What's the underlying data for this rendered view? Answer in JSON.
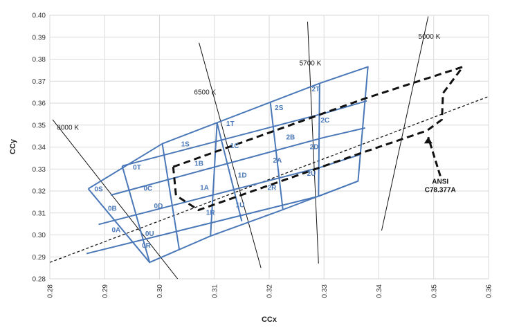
{
  "chart_data": {
    "type": "scatter",
    "xlabel": "CCx",
    "ylabel": "CCy",
    "xlim": [
      0.28,
      0.36
    ],
    "ylim": [
      0.28,
      0.4
    ],
    "xticks": [
      "0.28",
      "0.29",
      "0.30",
      "0.31",
      "0.32",
      "0.33",
      "0.34",
      "0.35",
      "0.36"
    ],
    "yticks": [
      "0.28",
      "0.29",
      "0.30",
      "0.31",
      "0.32",
      "0.33",
      "0.34",
      "0.35",
      "0.36",
      "0.37",
      "0.38",
      "0.39",
      "0.40"
    ],
    "grid": true,
    "colors": {
      "bins": "#4a78b8",
      "isotherm": "#111111",
      "ansi": "#111111",
      "grid": "#d9d9d9"
    },
    "bin_outlines": [
      {
        "name": "outer",
        "points": [
          [
            0.287,
            0.321
          ],
          [
            0.3005,
            0.3415
          ],
          [
            0.3292,
            0.369
          ],
          [
            0.338,
            0.3765
          ],
          [
            0.3362,
            0.3245
          ],
          [
            0.3225,
            0.3115
          ],
          [
            0.3093,
            0.2995
          ],
          [
            0.2982,
            0.2875
          ],
          [
            0.287,
            0.321
          ]
        ]
      },
      {
        "name": "div-6500",
        "points": [
          [
            0.3105,
            0.351
          ],
          [
            0.3093,
            0.2995
          ]
        ]
      },
      {
        "name": "div-5700",
        "points": [
          [
            0.3202,
            0.3605
          ],
          [
            0.3225,
            0.3115
          ]
        ]
      },
      {
        "name": "div-5000",
        "points": [
          [
            0.3292,
            0.369
          ],
          [
            0.329,
            0.3175
          ]
        ]
      },
      {
        "name": "row-1",
        "points": [
          [
            0.2932,
            0.3314
          ],
          [
            0.3305,
            0.3557
          ],
          [
            0.3378,
            0.361
          ]
        ]
      },
      {
        "name": "row-2",
        "points": [
          [
            0.2911,
            0.3181
          ],
          [
            0.3299,
            0.3443
          ],
          [
            0.3375,
            0.3487
          ]
        ]
      },
      {
        "name": "row-3",
        "points": [
          [
            0.2889,
            0.3048
          ],
          [
            0.3294,
            0.3308
          ],
          [
            0.3365,
            0.3365
          ]
        ]
      },
      {
        "name": "row-4",
        "points": [
          [
            0.2867,
            0.2915
          ],
          [
            0.3289,
            0.3175
          ],
          [
            0.3362,
            0.3245
          ]
        ]
      },
      {
        "name": "bin0-a",
        "points": [
          [
            0.2932,
            0.3314
          ],
          [
            0.2982,
            0.2875
          ]
        ]
      },
      {
        "name": "bin0-b",
        "points": [
          [
            0.3005,
            0.3415
          ],
          [
            0.3036,
            0.2935
          ]
        ]
      },
      {
        "name": "bin1-a",
        "points": [
          [
            0.3105,
            0.351
          ],
          [
            0.315,
            0.3062
          ]
        ]
      }
    ],
    "bin_labels": [
      {
        "label": "0S",
        "x": 0.2889,
        "y": 0.3209
      },
      {
        "label": "0T",
        "x": 0.2959,
        "y": 0.3308
      },
      {
        "label": "0B",
        "x": 0.2914,
        "y": 0.3121
      },
      {
        "label": "0C",
        "x": 0.2979,
        "y": 0.3213
      },
      {
        "label": "0A",
        "x": 0.2921,
        "y": 0.3024
      },
      {
        "label": "0D",
        "x": 0.2998,
        "y": 0.3132
      },
      {
        "label": "0R",
        "x": 0.2976,
        "y": 0.2953
      },
      {
        "label": "0U",
        "x": 0.2982,
        "y": 0.3007
      },
      {
        "label": "1S",
        "x": 0.3047,
        "y": 0.3414
      },
      {
        "label": "1T",
        "x": 0.3129,
        "y": 0.3507
      },
      {
        "label": "1B",
        "x": 0.3072,
        "y": 0.3326
      },
      {
        "label": "1C",
        "x": 0.3137,
        "y": 0.3406
      },
      {
        "label": "1A",
        "x": 0.3082,
        "y": 0.3215
      },
      {
        "label": "1D",
        "x": 0.3151,
        "y": 0.3272
      },
      {
        "label": "1R",
        "x": 0.3093,
        "y": 0.3103
      },
      {
        "label": "1U",
        "x": 0.3147,
        "y": 0.3137
      },
      {
        "label": "2S",
        "x": 0.3218,
        "y": 0.3579
      },
      {
        "label": "2T",
        "x": 0.3285,
        "y": 0.3665
      },
      {
        "label": "2B",
        "x": 0.3239,
        "y": 0.3445
      },
      {
        "label": "2C",
        "x": 0.3302,
        "y": 0.3523
      },
      {
        "label": "2A",
        "x": 0.3215,
        "y": 0.334
      },
      {
        "label": "2D",
        "x": 0.3282,
        "y": 0.3402
      },
      {
        "label": "2R",
        "x": 0.3205,
        "y": 0.3216
      },
      {
        "label": "2U",
        "x": 0.3277,
        "y": 0.3281
      }
    ],
    "isotherms": [
      {
        "label": "8000 K",
        "points": [
          [
            0.2805,
            0.3525
          ],
          [
            0.3033,
            0.28
          ]
        ],
        "label_at": [
          0.2813,
          0.3478
        ]
      },
      {
        "label": "6500 K",
        "points": [
          [
            0.3072,
            0.3875
          ],
          [
            0.3185,
            0.285
          ]
        ],
        "label_at": [
          0.3063,
          0.364
        ]
      },
      {
        "label": "5700 K",
        "points": [
          [
            0.327,
            0.397
          ],
          [
            0.329,
            0.287
          ]
        ],
        "label_at": [
          0.3255,
          0.3771
        ]
      },
      {
        "label": "5000 K",
        "points": [
          [
            0.349,
            0.3995
          ],
          [
            0.3405,
            0.302
          ]
        ],
        "label_at": [
          0.3472,
          0.3893
        ]
      }
    ],
    "dashed_center": {
      "points": [
        [
          0.28,
          0.2875
        ],
        [
          0.36,
          0.363
        ]
      ]
    },
    "ansi_box": {
      "points": [
        [
          0.3025,
          0.331
        ],
        [
          0.3376,
          0.3622
        ],
        [
          0.3553,
          0.3765
        ],
        [
          0.3517,
          0.3645
        ],
        [
          0.3515,
          0.3525
        ],
        [
          0.3488,
          0.3475
        ],
        [
          0.3368,
          0.3373
        ],
        [
          0.3071,
          0.3113
        ],
        [
          0.303,
          0.318
        ],
        [
          0.3025,
          0.331
        ]
      ]
    },
    "ansi_label": {
      "line1": "ANSI",
      "line2": "C78.377A"
    },
    "ansi_arrow": {
      "points": [
        [
          0.3512,
          0.3268
        ],
        [
          0.349,
          0.3445
        ]
      ]
    }
  }
}
